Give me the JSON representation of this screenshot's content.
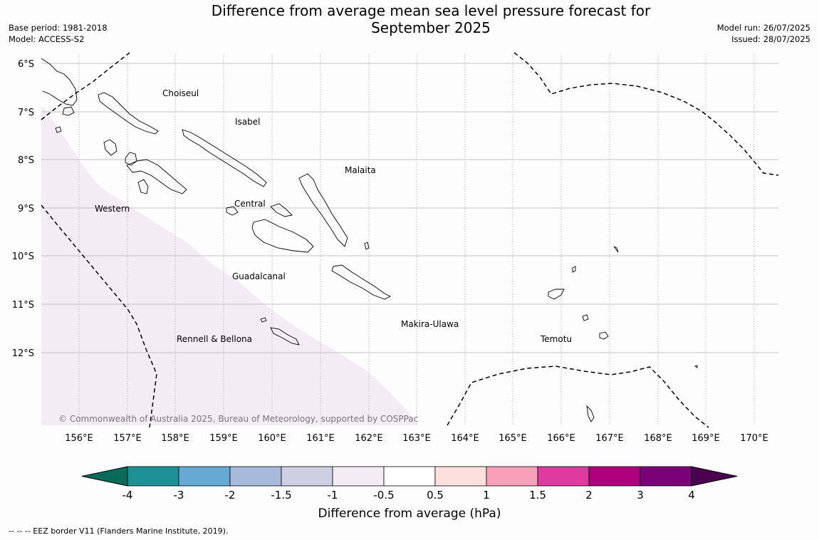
{
  "header": {
    "title_line1": "Difference from average mean sea level pressure forecast for",
    "title_line2": "September 2025",
    "base_period": "Base period: 1981-2018",
    "model": "Model: ACCESS-S2",
    "model_run": "Model run: 26/07/2025",
    "issued": "Issued: 28/07/2025"
  },
  "map": {
    "lat_labels": [
      "6°S",
      "7°S",
      "8°S",
      "9°S",
      "10°S",
      "11°S",
      "12°S"
    ],
    "lon_labels": [
      "156°E",
      "157°E",
      "158°E",
      "159°E",
      "160°E",
      "161°E",
      "162°E",
      "163°E",
      "164°E",
      "165°E",
      "166°E",
      "167°E",
      "168°E",
      "169°E",
      "170°E"
    ],
    "regions": [
      "Choiseul",
      "Isabel",
      "Malaita",
      "Central",
      "Western",
      "Guadalcanal",
      "Makira-Ulawa",
      "Rennell & Bellona",
      "Temotu"
    ],
    "copyright": "© Commonwealth of Australia 2025, Bureau of Meteorology, supported by COSPPac",
    "shaded_anomaly_category": "-1 to -0.5",
    "colors": {
      "shade": "#f4ecf5",
      "grid": "#b0b0b0",
      "eez": "#000000"
    }
  },
  "colorbar": {
    "title": "Difference from average (hPa)",
    "ticks": [
      "-4",
      "-3",
      "-2",
      "-1.5",
      "-1",
      "-0.5",
      "0.5",
      "1",
      "1.5",
      "2",
      "3",
      "4"
    ],
    "under_color": "#0b6b5a",
    "over_color": "#4a004f",
    "colors": [
      "#1e9196",
      "#67aad1",
      "#a7badb",
      "#cecfe3",
      "#f4ecf5",
      "#ffffff",
      "#fde0dd",
      "#f89fba",
      "#df3aa0",
      "#ae017d",
      "#7a0177"
    ]
  },
  "footnote": "--  --  -- EEZ border V11 (Flanders Marine Institute, 2019)."
}
